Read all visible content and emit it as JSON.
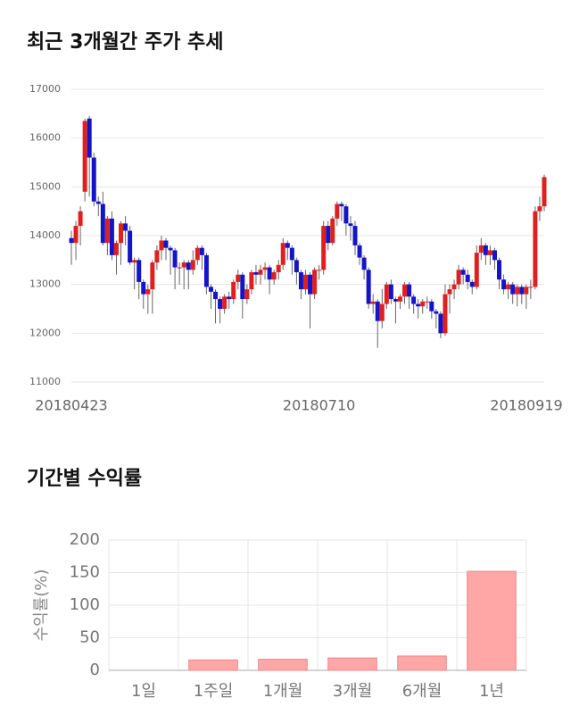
{
  "chart_data": [
    {
      "type": "candlestick",
      "title": "최근 3개월간 주가 추세",
      "categories": [
        "20180423",
        null,
        null,
        null,
        null,
        null,
        null,
        null,
        null,
        null,
        null,
        null,
        null,
        null,
        null,
        null,
        null,
        null,
        null,
        null,
        null,
        null,
        null,
        null,
        null,
        null,
        null,
        null,
        null,
        null,
        null,
        null,
        null,
        null,
        null,
        null,
        null,
        null,
        null,
        null,
        null,
        null,
        null,
        null,
        null,
        null,
        null,
        null,
        null,
        null,
        null,
        null,
        null,
        null,
        null,
        "20180710",
        null,
        null,
        null,
        null,
        null,
        null,
        null,
        null,
        null,
        null,
        null,
        null,
        null,
        null,
        null,
        null,
        null,
        null,
        null,
        null,
        null,
        null,
        null,
        null,
        null,
        null,
        null,
        null,
        null,
        null,
        null,
        null,
        null,
        null,
        null,
        null,
        null,
        null,
        null,
        null,
        null,
        null,
        null,
        null,
        null,
        null,
        null,
        null,
        null,
        "20180919"
      ],
      "open": [
        13950,
        13850,
        14200,
        14900,
        16400,
        15600,
        14700,
        14650,
        13850,
        14350,
        13600,
        13850,
        14250,
        14100,
        13450,
        13500,
        13050,
        12800,
        12900,
        13450,
        13700,
        13900,
        13750,
        13700,
        13350,
        13350,
        13450,
        13300,
        13500,
        13750,
        13600,
        12950,
        12850,
        12700,
        12500,
        12750,
        12700,
        13050,
        13200,
        12700,
        12900,
        13250,
        13200,
        13300,
        13350,
        13100,
        13250,
        13400,
        13850,
        13750,
        13500,
        13250,
        12900,
        13200,
        12800,
        13300,
        13300,
        14200,
        13850,
        14350,
        14650,
        14600,
        14250,
        14200,
        13800,
        13550,
        13300,
        12600,
        12650,
        12250,
        12600,
        13000,
        12700,
        12650,
        12750,
        13000,
        12750,
        12600,
        12550,
        12650,
        12650,
        12450,
        12400,
        12000,
        12800,
        12900,
        13000,
        13300,
        13200,
        13050,
        12950,
        13650,
        13800,
        13600,
        13700,
        13500,
        13100,
        12900,
        13000,
        12800,
        12950,
        12800,
        12950,
        12950,
        14500,
        14600
      ],
      "high": [
        14100,
        14300,
        14600,
        16400,
        16450,
        15700,
        14800,
        14900,
        14400,
        14500,
        13900,
        14300,
        14400,
        14200,
        13550,
        13550,
        13100,
        13000,
        13500,
        13800,
        14000,
        13950,
        13800,
        13750,
        13450,
        13500,
        13500,
        13700,
        13800,
        13800,
        13650,
        13000,
        12900,
        12750,
        12800,
        12850,
        13100,
        13300,
        13250,
        13000,
        13300,
        13400,
        13400,
        13450,
        13400,
        13300,
        13500,
        13950,
        13900,
        13800,
        13550,
        13300,
        13300,
        13250,
        13350,
        13400,
        14300,
        14300,
        14400,
        14700,
        14700,
        14650,
        14400,
        14300,
        13850,
        13600,
        13350,
        12800,
        12700,
        12900,
        13050,
        13100,
        12750,
        12800,
        13050,
        13050,
        12800,
        12700,
        12700,
        12750,
        12700,
        12500,
        12450,
        13000,
        13000,
        13100,
        13400,
        13350,
        13300,
        13100,
        13800,
        13950,
        13850,
        13800,
        13750,
        13550,
        13200,
        13050,
        13050,
        13000,
        13000,
        13000,
        13100,
        14600,
        14800,
        15250
      ],
      "low": [
        13400,
        13500,
        13800,
        14700,
        14800,
        14600,
        14400,
        13800,
        13600,
        13500,
        13200,
        13400,
        13800,
        13400,
        12900,
        12700,
        12500,
        12400,
        12400,
        13300,
        13500,
        13500,
        13200,
        12900,
        13000,
        12900,
        12900,
        13200,
        13400,
        13300,
        12800,
        12500,
        12200,
        12200,
        12400,
        12500,
        12600,
        12900,
        12300,
        12600,
        12800,
        13000,
        13000,
        13100,
        12800,
        13000,
        13100,
        13300,
        13500,
        13200,
        13000,
        12700,
        12800,
        12100,
        12700,
        13100,
        13200,
        13700,
        13800,
        14200,
        14300,
        14000,
        13900,
        13600,
        13400,
        13100,
        12500,
        12400,
        11700,
        12100,
        12500,
        12600,
        12200,
        12500,
        12600,
        12500,
        12400,
        12300,
        12400,
        12500,
        12300,
        12100,
        11900,
        11950,
        12400,
        12700,
        12900,
        13000,
        12900,
        12800,
        12900,
        13500,
        13400,
        13400,
        13300,
        12900,
        12800,
        12700,
        12600,
        12550,
        12600,
        12500,
        12700,
        12900,
        14300,
        14500
      ],
      "close": [
        13850,
        14200,
        14500,
        16350,
        15600,
        14700,
        14650,
        13850,
        14350,
        13600,
        13850,
        14250,
        14100,
        13450,
        13500,
        13050,
        12800,
        12900,
        13450,
        13700,
        13900,
        13750,
        13700,
        13350,
        13350,
        13450,
        13300,
        13500,
        13750,
        13600,
        12950,
        12850,
        12700,
        12500,
        12750,
        12700,
        13050,
        13200,
        12700,
        12900,
        13250,
        13200,
        13300,
        13350,
        13100,
        13250,
        13400,
        13850,
        13750,
        13500,
        13250,
        12900,
        13200,
        12800,
        13300,
        13300,
        14200,
        13850,
        14350,
        14650,
        14600,
        14250,
        14200,
        13800,
        13550,
        13300,
        12600,
        12650,
        12250,
        12600,
        13000,
        12700,
        12650,
        12750,
        13000,
        12750,
        12600,
        12550,
        12650,
        12650,
        12450,
        12400,
        12000,
        12800,
        12900,
        13000,
        13300,
        13200,
        13050,
        12950,
        13650,
        13800,
        13600,
        13700,
        13500,
        13100,
        12900,
        13000,
        12800,
        12950,
        12800,
        12950,
        12950,
        14500,
        14600,
        15200
      ],
      "up_color": "#e0201e",
      "down_color": "#1414c8",
      "ylim": [
        11000,
        17000
      ],
      "yticks": [
        11000,
        12000,
        13000,
        14000,
        15000,
        16000,
        17000
      ],
      "grid": true
    },
    {
      "type": "bar",
      "title": "기간별 수익률",
      "y_label": "수익률(%)",
      "categories": [
        "1일",
        "1주일",
        "1개월",
        "3개월",
        "6개월",
        "1년"
      ],
      "values": [
        0,
        16,
        17,
        19,
        22,
        152
      ],
      "color": "#ffa6a6",
      "ylim": [
        0,
        200
      ],
      "yticks": [
        0,
        50,
        100,
        150,
        200
      ],
      "grid": true
    }
  ]
}
